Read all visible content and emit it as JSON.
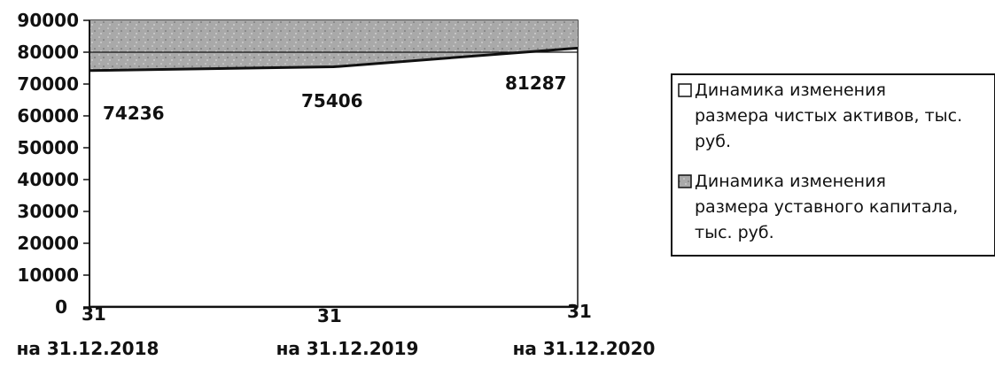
{
  "chart_data": {
    "type": "area",
    "categories": [
      "на 31.12.2018",
      "на 31.12.2019",
      "на 31.12.2020"
    ],
    "series": [
      {
        "name": "Динамика изменения размера чистых активов, тыс. руб.",
        "values": [
          74236,
          75406,
          81287
        ],
        "fill": "#ffffff"
      },
      {
        "name": "Динамика изменения размера уставного капитала, тыс. руб.",
        "values": [
          31,
          31,
          31
        ],
        "fill": "#a9a9a9"
      }
    ],
    "data_labels": {
      "net_assets": [
        "74236",
        "75406",
        "81287"
      ],
      "charter_capital": [
        "31",
        "31",
        "31"
      ]
    },
    "y_ticks": [
      "0",
      "10000",
      "20000",
      "30000",
      "40000",
      "50000",
      "60000",
      "70000",
      "80000",
      "90000"
    ],
    "ylim": [
      0,
      90000
    ],
    "grid": true,
    "legend_position": "right",
    "colors": {
      "plot_bg": "#ffffff",
      "top_band": "#a9a9a9",
      "line": "#111111"
    }
  }
}
